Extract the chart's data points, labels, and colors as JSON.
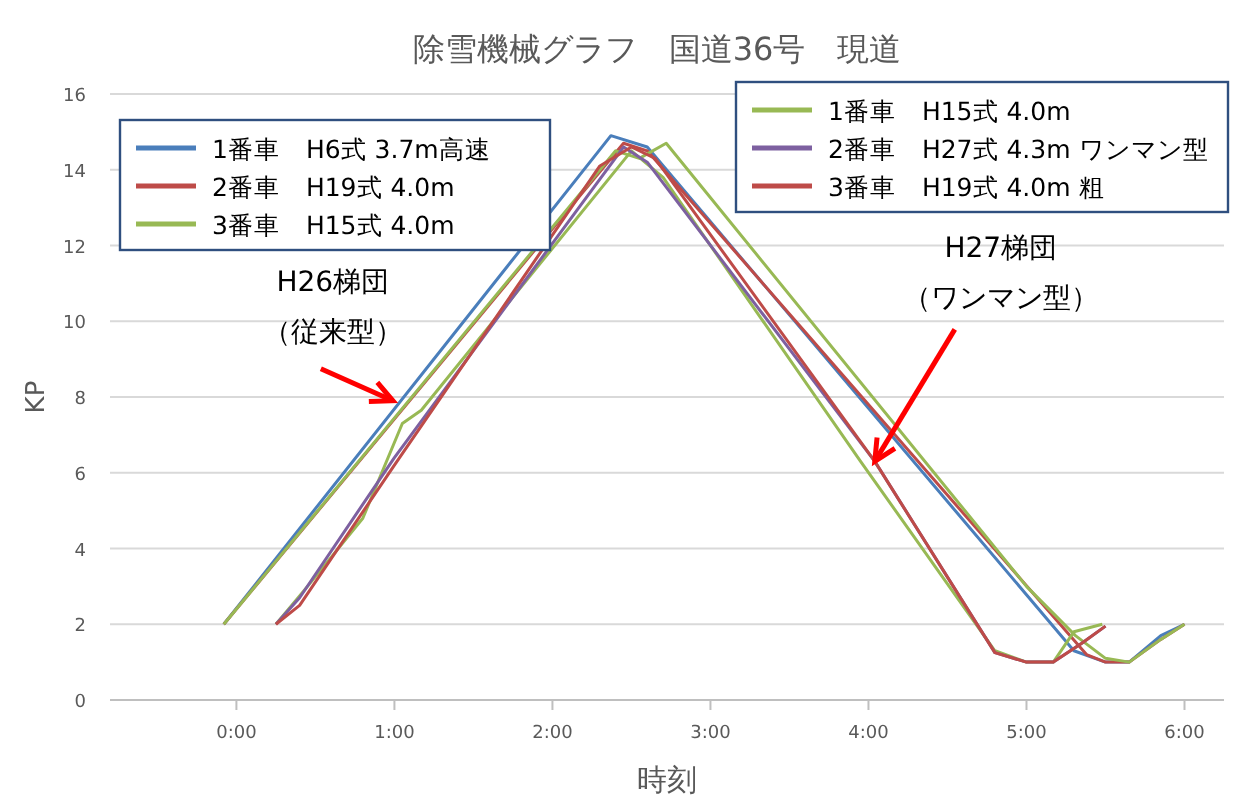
{
  "chart_data": {
    "type": "line",
    "title": "除雪機械グラフ　国道36号　現道",
    "xlabel": "時刻",
    "ylabel": "KP",
    "xlim": [
      -0.8,
      6.25
    ],
    "ylim": [
      0,
      16
    ],
    "xticks": [
      {
        "value": 0,
        "label": "0:00"
      },
      {
        "value": 1,
        "label": "1:00"
      },
      {
        "value": 2,
        "label": "2:00"
      },
      {
        "value": 3,
        "label": "3:00"
      },
      {
        "value": 4,
        "label": "4:00"
      },
      {
        "value": 5,
        "label": "5:00"
      },
      {
        "value": 6,
        "label": "6:00"
      }
    ],
    "yticks": [
      0,
      2,
      4,
      6,
      8,
      10,
      12,
      14,
      16
    ],
    "grid": "y",
    "legend": "top",
    "marker": "none",
    "series": [
      {
        "name": "1番車　H6式 3.7m高速",
        "color": "#4a7ebb",
        "x": [
          -0.08,
          2.37,
          2.6,
          5.3,
          5.5,
          5.65,
          5.85,
          6.0
        ],
        "values": [
          2,
          14.9,
          14.6,
          1.3,
          1.0,
          1.0,
          1.7,
          2.0
        ]
      },
      {
        "name": "2番車　H19式 4.0m",
        "color": "#be4b48",
        "x": [
          -0.08,
          2.45,
          2.6,
          5.38,
          5.5,
          5.65,
          5.85,
          6.0
        ],
        "values": [
          2,
          14.7,
          14.5,
          1.2,
          1.0,
          1.0,
          1.6,
          2.0
        ]
      },
      {
        "name": "3番車　H15式 4.0m",
        "color": "#98b954",
        "x": [
          -0.08,
          2.4,
          2.55,
          2.72,
          5.0,
          5.31,
          5.5,
          5.65,
          5.85,
          6.0
        ],
        "values": [
          2,
          14.5,
          14.3,
          14.7,
          3.0,
          1.7,
          1.1,
          1.0,
          1.6,
          2.0
        ]
      },
      {
        "name": "1番車　H15式 4.0m",
        "color": "#98b954",
        "x": [
          0.25,
          0.45,
          0.8,
          1.05,
          1.17,
          2.5,
          2.7,
          3.95,
          4.8,
          5.0,
          5.17,
          5.3,
          5.48
        ],
        "values": [
          2,
          3.0,
          4.8,
          7.3,
          7.65,
          14.5,
          13.8,
          6.3,
          1.3,
          1.0,
          1.0,
          1.8,
          2.0
        ]
      },
      {
        "name": "2番車　H27式 4.3m ワンマン型",
        "color": "#7d60a0",
        "x": [
          0.25,
          0.4,
          1.0,
          2.45,
          2.6,
          4.04,
          4.8,
          5.0,
          5.17,
          5.35,
          5.5
        ],
        "values": [
          2,
          2.7,
          6.4,
          14.6,
          14.2,
          6.3,
          1.25,
          1.0,
          1.0,
          1.5,
          1.95
        ]
      },
      {
        "name": "3番車　H19式 4.0m 粗",
        "color": "#be4b48",
        "x": [
          0.25,
          0.4,
          1.0,
          2.3,
          2.5,
          2.65,
          4.04,
          4.8,
          5.0,
          5.17,
          5.35,
          5.5
        ],
        "values": [
          2,
          2.5,
          6.2,
          14.1,
          14.6,
          14.3,
          6.3,
          1.25,
          1.0,
          1.0,
          1.5,
          1.95
        ]
      }
    ],
    "annotations": [
      {
        "text": "H26梯団（従来型）",
        "x": 0.99,
        "y": 7.9
      },
      {
        "text": "H27梯団（ワンマン型）",
        "x": 4.04,
        "y": 6.3
      }
    ]
  }
}
